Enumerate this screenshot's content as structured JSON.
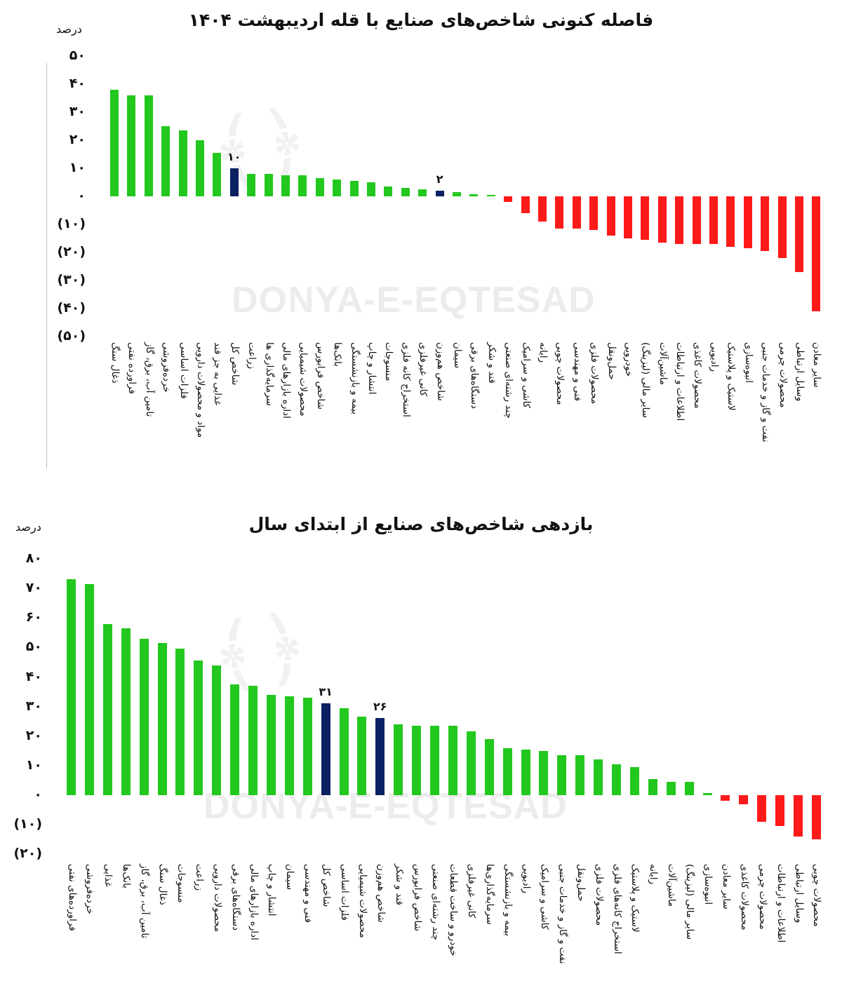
{
  "chart_data": [
    {
      "type": "bar",
      "title": "فاصله کنونی شاخص‌های صنایع با قله اردیبهشت ۱۴۰۴",
      "unit": "درصد",
      "ylim": [
        -50,
        50
      ],
      "yticks": [
        "۵۰",
        "۴۰",
        "۳۰",
        "۲۰",
        "۱۰",
        "۰",
        "(۱۰)",
        "(۲۰)",
        "(۳۰)",
        "(۴۰)",
        "(۵۰)"
      ],
      "watermark": "DONYA-E-EQTESAD",
      "colors": {
        "positive": "#22c81e",
        "negative": "#ff1a1a",
        "highlight": "#0b2063"
      },
      "categories": [
        "ذغال سنگ",
        "فراورده نفتی",
        "تامین آب، برق، گاز",
        "خرده‌فروشی",
        "فلزات اساسی",
        "مواد و محصولات دارویی",
        "غذایی به جز قند",
        "شاخص کل",
        "زراعت",
        "سرمایه‌گذاری ها",
        "اداره بازارهای مالی",
        "محصولات شیمیایی",
        "شاخص فرابورس",
        "بانک‌ها",
        "بیمه و بازنشستگی",
        "انتشار و چاپ",
        "منسوجات",
        "استخراج کانه فلزی",
        "کانی غیرفلزی",
        "شاخص هم‌وزن",
        "سیمان",
        "دستگاه‌های برقی",
        "قند و شکر",
        "چند رشته‌ای صنعتی",
        "کاشی و سرامیک",
        "رایانه",
        "محصولات چوبی",
        "فنی و مهندسی",
        "محصولات فلزی",
        "حمل‌ونقل",
        "خودرویی",
        "سایر مالی (لیزینگ)",
        "ماشین‌آلات",
        "اطلاعات و ارتباطات",
        "محصولات کاغذی",
        "رادیویی",
        "لاستیک و پلاستیک",
        "انبوه‌سازی",
        "نفت و گاز و خدمات جنبی",
        "محصولات چرمی",
        "وسایل ارتباطی",
        "سایر معادن"
      ],
      "values": [
        38,
        36,
        36,
        25,
        23.5,
        20,
        15.5,
        10,
        8,
        8,
        7.5,
        7.5,
        6.5,
        6,
        5.5,
        5,
        3.5,
        3,
        2.5,
        2,
        1.5,
        0.8,
        0.4,
        -2,
        -6,
        -9,
        -11.5,
        -11.5,
        -12,
        -14,
        -15,
        -15.5,
        -16.5,
        -17,
        -17,
        -17,
        -18,
        -18.5,
        -19.5,
        -22,
        -27,
        -41
      ],
      "highlights": [
        7,
        19
      ],
      "data_labels": {
        "7": "۱۰",
        "19": "۲"
      }
    },
    {
      "type": "bar",
      "title": "بازدهی شاخص‌های صنایع از ابتدای سال",
      "unit": "درصد",
      "ylim": [
        -20,
        80
      ],
      "yticks": [
        "۸۰",
        "۷۰",
        "۶۰",
        "۵۰",
        "۴۰",
        "۳۰",
        "۲۰",
        "۱۰",
        "۰",
        "(۱۰)",
        "(۲۰)"
      ],
      "watermark": "DONYA-E-EQTESAD",
      "colors": {
        "positive": "#22c81e",
        "negative": "#ff1a1a",
        "highlight": "#0b2063"
      },
      "categories": [
        "فراورده‌های نفتی",
        "خرده‌فروشی",
        "غذایی",
        "بانک‌ها",
        "تامین آب، برق، گاز",
        "ذغال سنگ",
        "منسوجات",
        "زراعت",
        "محصولات دارویی",
        "دستگاه‌های برقی",
        "اداره بازارهای مالی",
        "انتشار و چاپ",
        "سیمان",
        "فنی و مهندسی",
        "شاخص کل",
        "فلزات اساسی",
        "محصولات شیمیایی",
        "شاخص هم‌وزن",
        "قند و شکر",
        "شاخص فرابورس",
        "چند رشته‌ای صنعتی",
        "خودرو و ساخت قطعات",
        "کانی غیرفلزی",
        "سرمایه‌گذاری‌ها",
        "بیمه و بازنشستگی",
        "رادیویی",
        "کاشی و سرامیک",
        "نفت و گاز و خدمات جنبی",
        "حمل‌ونقل",
        "محصولات فلزی",
        "استخراج کانه‌های فلزی",
        "لاستیک و پلاستیک",
        "رایانه",
        "ماشین‌آلات",
        "سایر مالی (لیزینگ)",
        "انبوه‌سازی",
        "سایر معادن",
        "محصولات کاغذی",
        "محصولات چرمی",
        "اطلاعات و ارتباطات",
        "وسایل ارتباطی",
        "محصولات چوبی"
      ],
      "values": [
        73,
        71.5,
        58,
        56.5,
        53,
        51.5,
        49.5,
        45.5,
        44,
        37.5,
        37,
        34,
        33.5,
        33,
        31,
        29.5,
        26.5,
        26,
        24,
        23.5,
        23.5,
        23.5,
        21.5,
        19,
        16,
        15.5,
        15,
        13.5,
        13.5,
        12,
        10.5,
        9.5,
        5.5,
        4.5,
        4.5,
        0.8,
        -2,
        -3,
        -9,
        -10.5,
        -14,
        -15
      ],
      "highlights": [
        14,
        17
      ],
      "data_labels": {
        "14": "۳۱",
        "17": "۲۶"
      }
    }
  ]
}
